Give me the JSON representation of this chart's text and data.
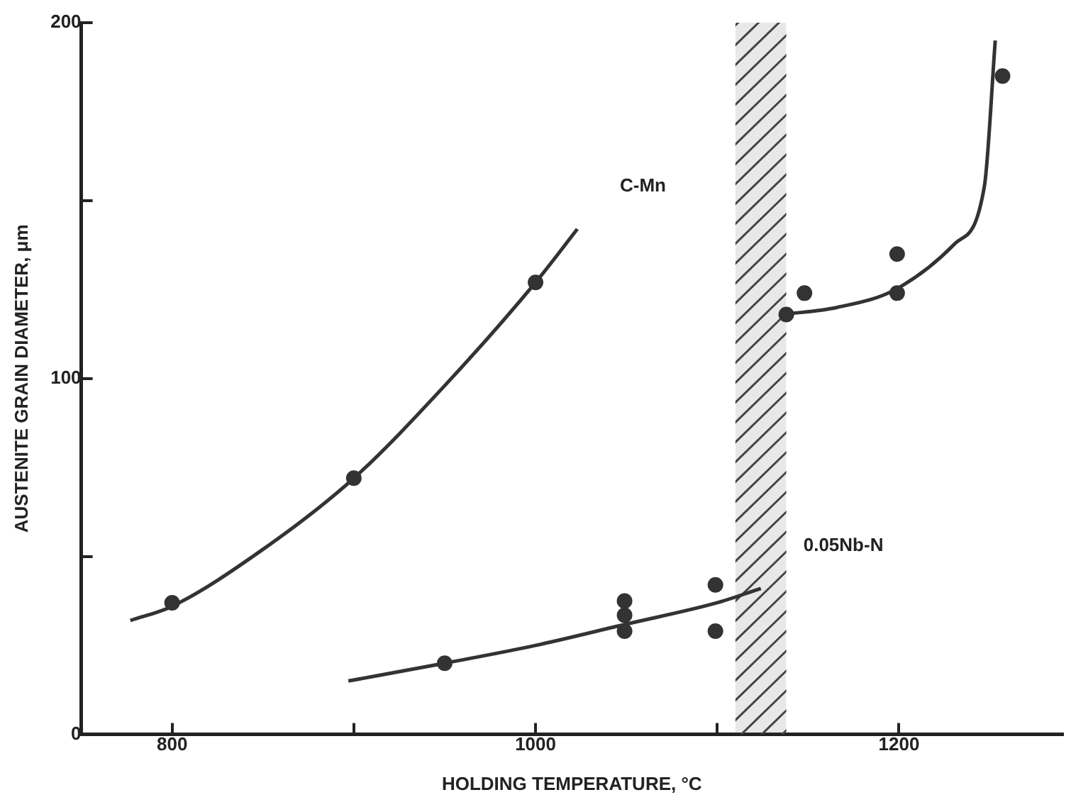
{
  "chart_data": {
    "type": "scatter",
    "xlabel": "HOLDING TEMPERATURE, °C",
    "ylabel": "AUSTENITE GRAIN DIAMETER, μm",
    "xlim": [
      750,
      1290
    ],
    "xticks": [
      800,
      {
        "value": 900,
        "label": null
      },
      1000,
      {
        "value": 1100,
        "label": null
      },
      1200
    ],
    "ylim": [
      0,
      200
    ],
    "yticks": [
      0,
      {
        "value": 50,
        "label": null
      },
      100,
      {
        "value": 150,
        "label": null
      },
      200
    ],
    "grid": false,
    "legend": false,
    "marker": "circle",
    "series": [
      {
        "type": "line",
        "name": "C-Mn",
        "color": "#333333",
        "x": [
          777,
          800,
          850,
          900,
          950,
          1000,
          1023
        ],
        "values": [
          32,
          36,
          52,
          72,
          98,
          127,
          142
        ],
        "marker": "none"
      },
      {
        "color": "#333333",
        "x": [
          800,
          900,
          1000
        ],
        "values": [
          37,
          72,
          127
        ]
      },
      {
        "type": "line",
        "name": "0.05Nb-N",
        "color": "#333333",
        "x": [
          897,
          950,
          1000,
          1050,
          1100,
          1124
        ],
        "values": [
          15,
          20,
          25,
          31,
          37,
          41
        ],
        "marker": "none"
      },
      {
        "type": "line",
        "color": "#333333",
        "x": [
          1136,
          1166,
          1198,
          1231,
          1247,
          1253
        ],
        "values": [
          118,
          120,
          125,
          138,
          154,
          195
        ],
        "marker": "none"
      },
      {
        "color": "#333333",
        "x": [
          950,
          1049,
          1049,
          1049,
          1099,
          1099,
          1138,
          1148,
          1199,
          1199,
          1257
        ],
        "values": [
          20,
          37.5,
          33.5,
          29,
          42,
          29,
          118,
          124,
          135,
          124,
          185
        ]
      }
    ],
    "bands": [
      {
        "axis": "x",
        "from": 1110,
        "to": 1138,
        "color": "#444444"
      }
    ]
  }
}
